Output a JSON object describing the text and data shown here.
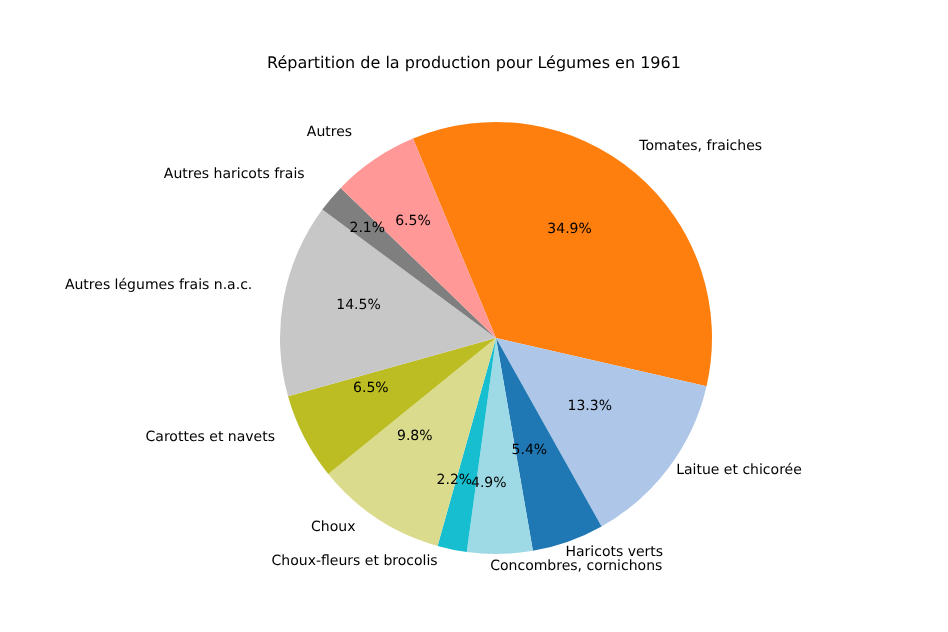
{
  "chart_data": {
    "type": "pie",
    "title": "Répartition de la production pour Légumes en 1961",
    "categories": [
      "Tomates, fraiches",
      "Laitue et chicorée",
      "Haricots verts",
      "Concombres, cornichons",
      "Choux-fleurs et brocolis",
      "Choux",
      "Carottes et navets",
      "Autres légumes frais n.a.c.",
      "Autres haricots frais",
      "Autres"
    ],
    "values": [
      34.9,
      13.3,
      5.4,
      4.9,
      2.2,
      9.8,
      6.5,
      14.5,
      2.1,
      6.5
    ],
    "value_labels": [
      "34.9%",
      "13.3%",
      "5.4%",
      "4.9%",
      "2.2%",
      "9.8%",
      "6.5%",
      "14.5%",
      "2.1%",
      "6.5%"
    ],
    "colors": [
      "#ff7f0e",
      "#aec7e8",
      "#1f77b4",
      "#9edae5",
      "#17becf",
      "#dbdb8d",
      "#bcbd22",
      "#c7c7c7",
      "#7f7f7f",
      "#ff9896"
    ]
  }
}
